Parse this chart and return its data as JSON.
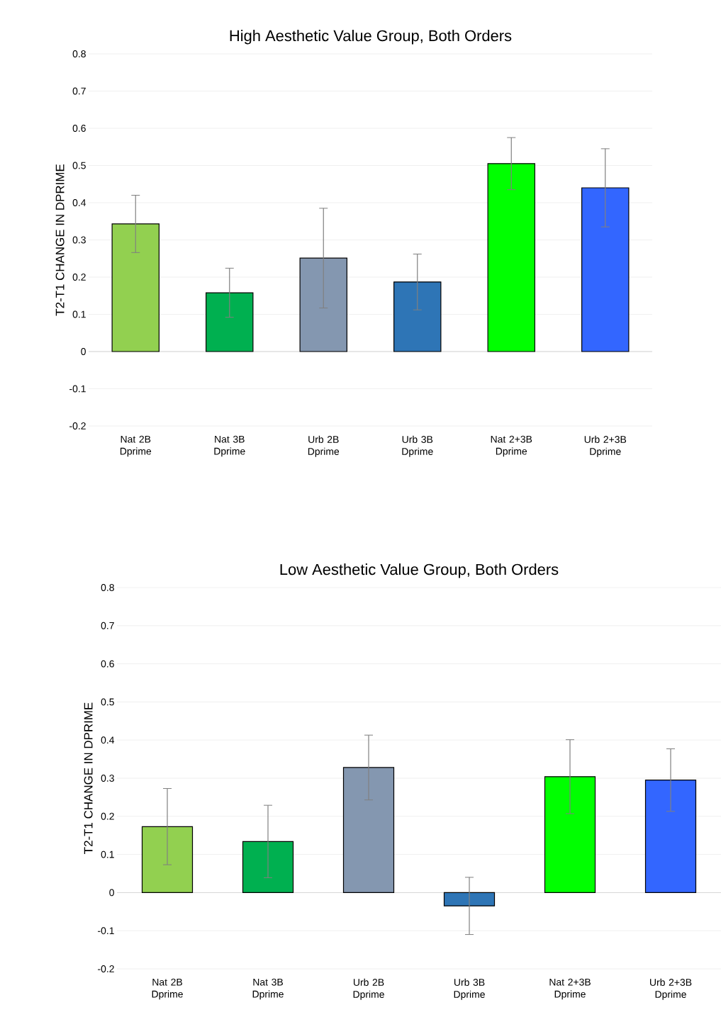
{
  "chart_data": [
    {
      "type": "bar",
      "title": "High Aesthetic Value Group, Both Orders",
      "ylabel": "T2-T1 CHANGE IN DPRIME",
      "categories": [
        "Nat 2B Dprime",
        "Nat 3B Dprime",
        "Urb 2B Dprime",
        "Urb 3B Dprime",
        "Nat 2+3B Dprime",
        "Urb 2+3B Dprime"
      ],
      "values": [
        0.343,
        0.158,
        0.251,
        0.187,
        0.505,
        0.44
      ],
      "errors": [
        0.077,
        0.066,
        0.134,
        0.075,
        0.07,
        0.105
      ],
      "colors": [
        "#92d050",
        "#00b050",
        "#8497b0",
        "#2e75b6",
        "#00ff00",
        "#3366ff"
      ],
      "ylim": [
        -0.2,
        0.8
      ],
      "yticks": [
        -0.2,
        -0.1,
        0,
        0.1,
        0.2,
        0.3,
        0.4,
        0.5,
        0.6,
        0.7,
        0.8
      ],
      "grid": "y"
    },
    {
      "type": "bar",
      "title": "Low Aesthetic Value Group, Both Orders",
      "ylabel": "T2-T1 CHANGE IN DPRIME",
      "categories": [
        "Nat 2B Dprime",
        "Nat 3B Dprime",
        "Urb 2B Dprime",
        "Urb 3B Dprime",
        "Nat 2+3B Dprime",
        "Urb 2+3B Dprime"
      ],
      "values": [
        0.173,
        0.134,
        0.328,
        -0.035,
        0.304,
        0.295
      ],
      "errors": [
        0.1,
        0.095,
        0.085,
        0.075,
        0.097,
        0.082
      ],
      "colors": [
        "#92d050",
        "#00b050",
        "#8497b0",
        "#2e75b6",
        "#00ff00",
        "#3366ff"
      ],
      "ylim": [
        -0.2,
        0.8
      ],
      "yticks": [
        -0.2,
        -0.1,
        0,
        0.1,
        0.2,
        0.3,
        0.4,
        0.5,
        0.6,
        0.7,
        0.8
      ],
      "grid": "y"
    }
  ]
}
